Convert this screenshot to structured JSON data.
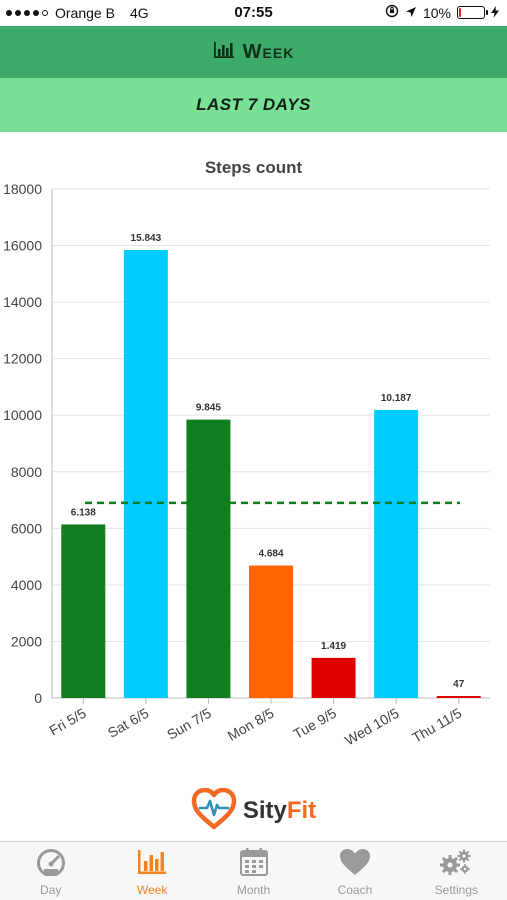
{
  "status_bar": {
    "carrier": "Orange B",
    "network": "4G",
    "time": "07:55",
    "battery": "10%",
    "battery_level": 0.1
  },
  "header": {
    "title": "Week",
    "icon": "bar-chart-icon"
  },
  "subheader": {
    "text": "LAST 7 DAYS"
  },
  "chart_data": {
    "type": "bar",
    "title": "Steps count",
    "categories": [
      "Fri 5/5",
      "Sat 6/5",
      "Sun 7/5",
      "Mon 8/5",
      "Tue 9/5",
      "Wed 10/5",
      "Thu 11/5"
    ],
    "values": [
      6138,
      15843,
      9845,
      4684,
      1419,
      10187,
      47
    ],
    "value_labels": [
      "6.138",
      "15.843",
      "9.845",
      "4.684",
      "1.419",
      "10.187",
      "47"
    ],
    "colors": [
      "#0e7e1e",
      "#00ccff",
      "#0e7e1e",
      "#ff6600",
      "#e00000",
      "#00ccff",
      "#e00000"
    ],
    "ylim": [
      0,
      18000
    ],
    "yticks": [
      0,
      2000,
      4000,
      6000,
      8000,
      10000,
      12000,
      14000,
      16000,
      18000
    ],
    "reference_line": {
      "value": 6900,
      "style": "dashed",
      "color": "#0e7e1e"
    },
    "grid": true,
    "xlabel": "",
    "ylabel": ""
  },
  "logo": {
    "prefix": "Sity",
    "suffix": "Fit",
    "icon": "heart-pulse-icon"
  },
  "tabs": [
    {
      "label": "Day",
      "icon": "gauge-icon",
      "active": false
    },
    {
      "label": "Week",
      "icon": "bar-chart-icon",
      "active": true
    },
    {
      "label": "Month",
      "icon": "calendar-icon",
      "active": false
    },
    {
      "label": "Coach",
      "icon": "heart-icon",
      "active": false
    },
    {
      "label": "Settings",
      "icon": "gears-icon",
      "active": false
    }
  ],
  "colors": {
    "header": "#3daa6a",
    "subheader": "#78e196",
    "active_tab": "#f5821f",
    "inactive_tab": "#9a9a9a"
  }
}
